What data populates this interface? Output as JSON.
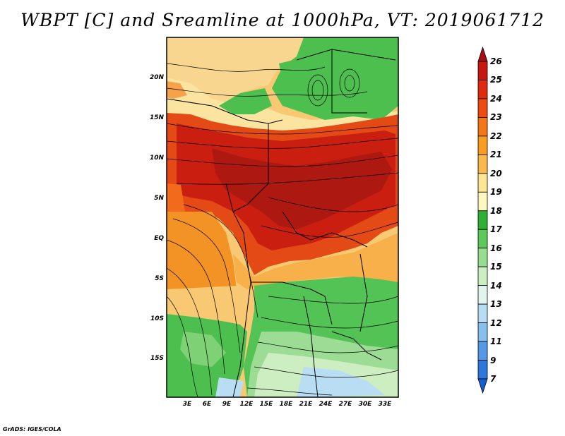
{
  "title": "WBPT [C] and Sreamline at 1000hPa, VT: 2019061712",
  "credit": "GrADS: IGES/COLA",
  "map": {
    "lat_labels": [
      "20N",
      "15N",
      "10N",
      "5N",
      "EQ",
      "5S",
      "10S",
      "15S"
    ],
    "lon_labels": [
      "3E",
      "6E",
      "9E",
      "12E",
      "15E",
      "18E",
      "21E",
      "24E",
      "27E",
      "30E",
      "33E"
    ]
  },
  "colorbar": {
    "labels": [
      "26",
      "25",
      "24",
      "23",
      "22",
      "21",
      "20",
      "19",
      "18",
      "17",
      "16",
      "15",
      "14",
      "13",
      "12",
      "11",
      "9",
      "7"
    ],
    "colors": [
      "#a50f15",
      "#c8170f",
      "#df2a10",
      "#ee4b12",
      "#f57617",
      "#fa9c20",
      "#fbb94c",
      "#fde593",
      "#fdf8c0",
      "#2eb034",
      "#5cc95a",
      "#97dd8f",
      "#cbefc0",
      "#e2f4ee",
      "#b7dcf5",
      "#86c0ee",
      "#5598e5",
      "#2e78dc",
      "#175dd2"
    ]
  },
  "legend_colors": {
    "hot": "#c91e10",
    "warm": "#f28a22",
    "yellow": "#fde593",
    "green": "#4cbd4e",
    "light_green": "#a7e39e",
    "blue": "#b9def3"
  }
}
